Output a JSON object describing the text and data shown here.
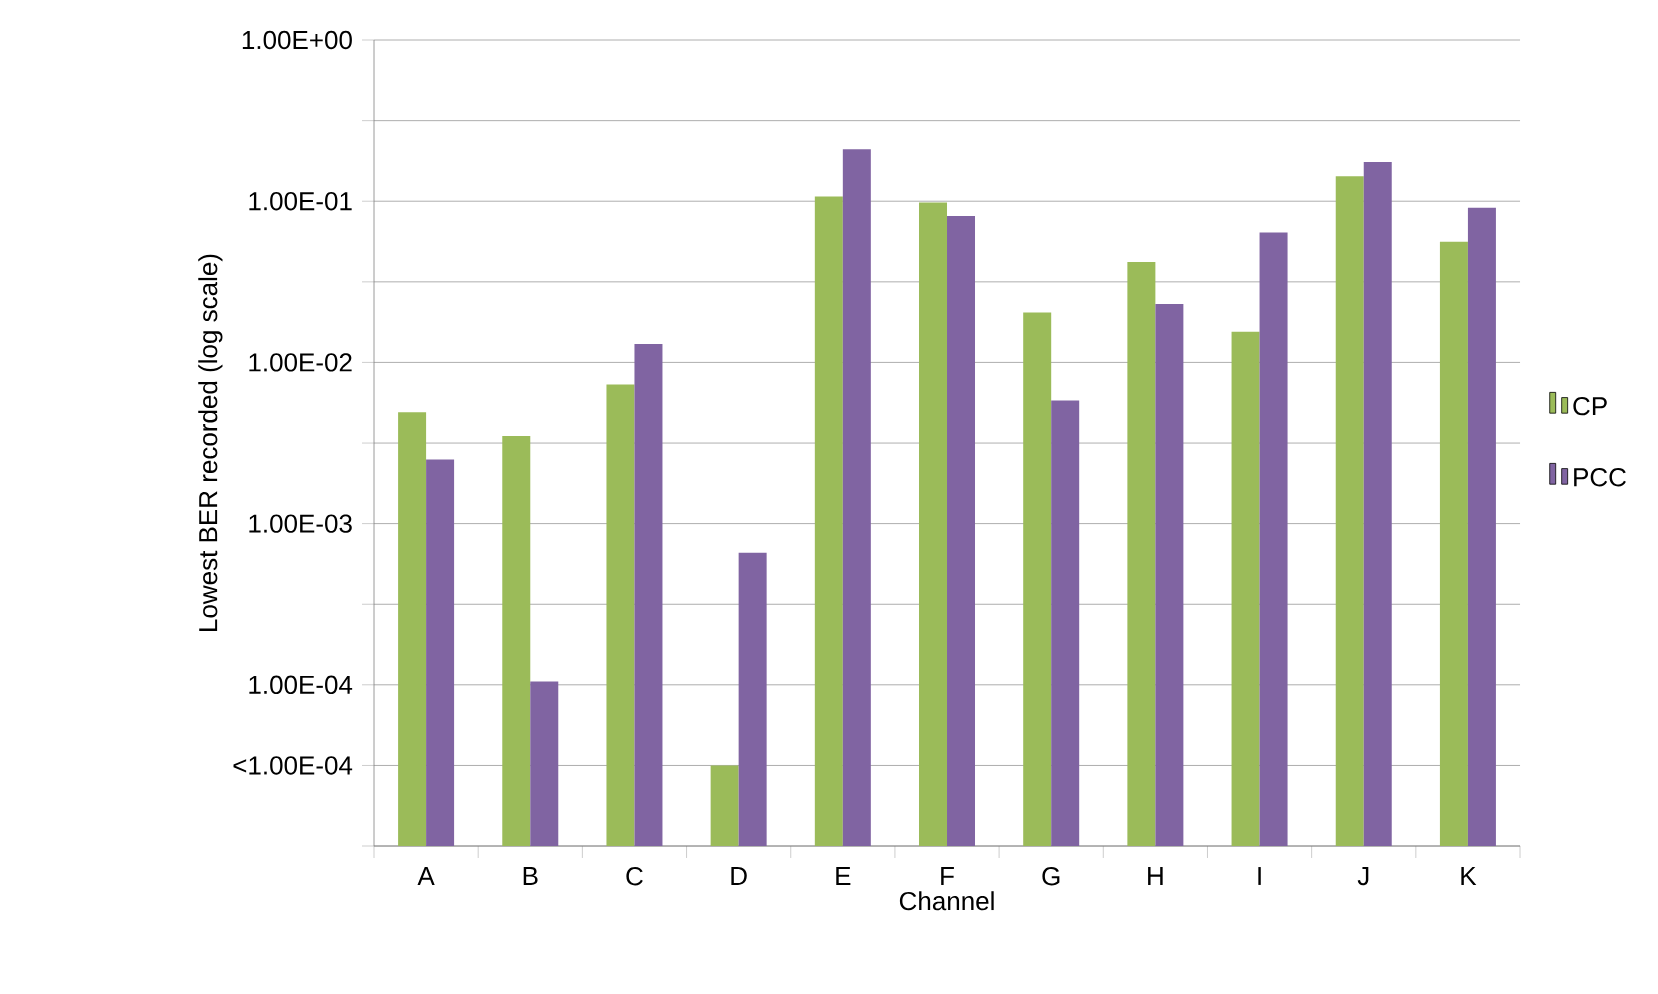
{
  "chart_data": {
    "type": "bar",
    "xlabel": "Channel",
    "ylabel": "Lowest BER recorded (log scale)",
    "categories": [
      "A",
      "B",
      "C",
      "D",
      "E",
      "F",
      "G",
      "H",
      "I",
      "J",
      "K"
    ],
    "series": [
      {
        "name": "CP",
        "color": "#9bbb59",
        "values": [
          0.0049,
          0.0035,
          0.0073,
          3.16e-05,
          0.107,
          0.098,
          0.0204,
          0.042,
          0.0155,
          0.143,
          0.056
        ]
      },
      {
        "name": "PCC",
        "color": "#8064a2",
        "values": [
          0.0025,
          0.000105,
          0.013,
          0.00066,
          0.21,
          0.081,
          0.0058,
          0.023,
          0.064,
          0.175,
          0.091
        ]
      }
    ],
    "log": "y",
    "ylim": [
      1e-05,
      1
    ],
    "yticks": [
      {
        "value": 1,
        "label": "1.00E+00"
      },
      {
        "value": 0.316,
        "label": null
      },
      {
        "value": 0.1,
        "label": "1.00E-01"
      },
      {
        "value": 0.0316,
        "label": null
      },
      {
        "value": 0.01,
        "label": "1.00E-02"
      },
      {
        "value": 0.00316,
        "label": null
      },
      {
        "value": 0.001,
        "label": "1.00E-03"
      },
      {
        "value": 0.000316,
        "label": null
      },
      {
        "value": 0.0001,
        "label": "1.00E-04"
      },
      {
        "value": 3.16e-05,
        "label": "<1.00E-04"
      },
      {
        "value": 1e-05,
        "label": null
      }
    ],
    "grid": "y",
    "legend": "right"
  }
}
